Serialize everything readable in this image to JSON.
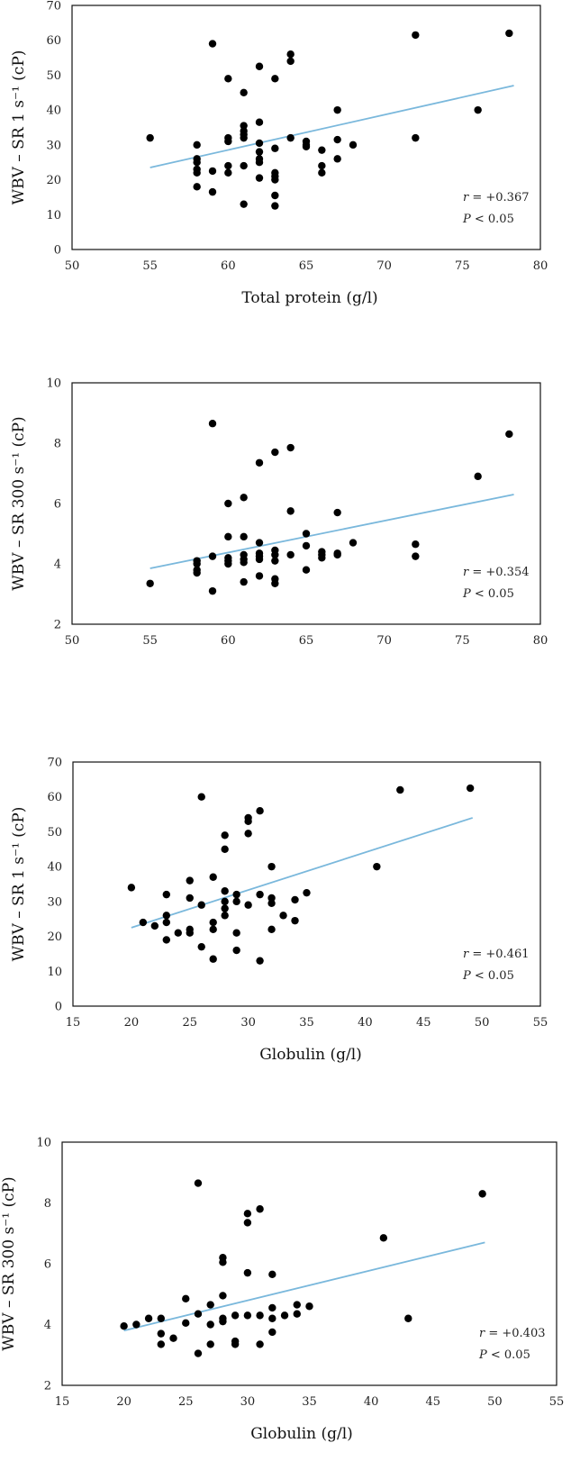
{
  "chart_data": [
    {
      "type": "scatter",
      "xlabel": "Total protein (g/l)",
      "ylabel": "WBV – SR 1 s⁻¹ (cP)",
      "xlim": [
        50,
        80
      ],
      "ylim": [
        0,
        70
      ],
      "xticks": [
        "50",
        "55",
        "60",
        "65",
        "70",
        "75",
        "80"
      ],
      "yticks": [
        "0",
        "10",
        "20",
        "30",
        "40",
        "50",
        "60",
        "70"
      ],
      "stat_r_label": "r",
      "stat_r_value": " = +0.367",
      "stat_p_label": "P",
      "stat_p_value": " < 0.05",
      "fit": [
        [
          55,
          23.5
        ],
        [
          78.3,
          47
        ]
      ],
      "points": [
        [
          55,
          32
        ],
        [
          58,
          30
        ],
        [
          58,
          26
        ],
        [
          58,
          25
        ],
        [
          58,
          23
        ],
        [
          58,
          22
        ],
        [
          58,
          18
        ],
        [
          59,
          59
        ],
        [
          59,
          22.5
        ],
        [
          59,
          16.5
        ],
        [
          60,
          49
        ],
        [
          60,
          32
        ],
        [
          60,
          31
        ],
        [
          60,
          24
        ],
        [
          60,
          22
        ],
        [
          61,
          45
        ],
        [
          61,
          35.5
        ],
        [
          61,
          34
        ],
        [
          61,
          33
        ],
        [
          61,
          32
        ],
        [
          61,
          24
        ],
        [
          61,
          13
        ],
        [
          62,
          52.5
        ],
        [
          62,
          36.5
        ],
        [
          62,
          30.5
        ],
        [
          62,
          28
        ],
        [
          62,
          26
        ],
        [
          62,
          25
        ],
        [
          62,
          20.5
        ],
        [
          63,
          49
        ],
        [
          63,
          29
        ],
        [
          63,
          22
        ],
        [
          63,
          21
        ],
        [
          63,
          20
        ],
        [
          63,
          15.5
        ],
        [
          63,
          12.5
        ],
        [
          64,
          56
        ],
        [
          64,
          54
        ],
        [
          64,
          32
        ],
        [
          65,
          31
        ],
        [
          65,
          30
        ],
        [
          65,
          29.5
        ],
        [
          66,
          28.5
        ],
        [
          66,
          24
        ],
        [
          66,
          22
        ],
        [
          67,
          40
        ],
        [
          67,
          31.5
        ],
        [
          67,
          26
        ],
        [
          68,
          30
        ],
        [
          72,
          61.5
        ],
        [
          72,
          32
        ],
        [
          76,
          40
        ],
        [
          78,
          62
        ]
      ]
    },
    {
      "type": "scatter",
      "xlabel": "Total protein (g/l)",
      "ylabel": "WBV – SR 300 s⁻¹ (cP)",
      "xlim": [
        50,
        80
      ],
      "ylim": [
        2,
        10
      ],
      "xticks": [
        "50",
        "55",
        "60",
        "65",
        "70",
        "75",
        "80"
      ],
      "yticks": [
        "2",
        "4",
        "6",
        "8",
        "10"
      ],
      "stat_r_label": "r",
      "stat_r_value": " = +0.354",
      "stat_p_label": "P",
      "stat_p_value": " < 0.05",
      "fit": [
        [
          55,
          3.85
        ],
        [
          78.3,
          6.3
        ]
      ],
      "points": [
        [
          55,
          3.35
        ],
        [
          58,
          4.1
        ],
        [
          58,
          4.0
        ],
        [
          58,
          3.8
        ],
        [
          58,
          3.7
        ],
        [
          59,
          8.65
        ],
        [
          59,
          4.25
        ],
        [
          59,
          3.1
        ],
        [
          60,
          6.0
        ],
        [
          60,
          4.9
        ],
        [
          60,
          4.2
        ],
        [
          60,
          4.1
        ],
        [
          60,
          4.0
        ],
        [
          61,
          6.2
        ],
        [
          61,
          4.9
        ],
        [
          61,
          4.3
        ],
        [
          61,
          4.15
        ],
        [
          61,
          4.05
        ],
        [
          61,
          3.4
        ],
        [
          62,
          7.35
        ],
        [
          62,
          4.7
        ],
        [
          62,
          4.35
        ],
        [
          62,
          4.25
        ],
        [
          62,
          4.15
        ],
        [
          62,
          3.6
        ],
        [
          63,
          7.7
        ],
        [
          63,
          4.45
        ],
        [
          63,
          4.3
        ],
        [
          63,
          4.1
        ],
        [
          63,
          3.5
        ],
        [
          63,
          3.35
        ],
        [
          64,
          7.85
        ],
        [
          64,
          5.75
        ],
        [
          64,
          4.3
        ],
        [
          65,
          5.0
        ],
        [
          65,
          4.6
        ],
        [
          65,
          3.8
        ],
        [
          66,
          4.4
        ],
        [
          66,
          4.3
        ],
        [
          66,
          4.2
        ],
        [
          67,
          5.7
        ],
        [
          67,
          4.35
        ],
        [
          67,
          4.3
        ],
        [
          68,
          4.7
        ],
        [
          72,
          4.65
        ],
        [
          72,
          4.25
        ],
        [
          76,
          6.9
        ],
        [
          78,
          8.3
        ]
      ]
    },
    {
      "type": "scatter",
      "xlabel": "Globulin (g/l)",
      "ylabel": "WBV – SR 1 s⁻¹ (cP)",
      "xlim": [
        15,
        55
      ],
      "ylim": [
        0,
        70
      ],
      "xticks": [
        "15",
        "20",
        "25",
        "30",
        "35",
        "40",
        "45",
        "50",
        "55"
      ],
      "yticks": [
        "0",
        "10",
        "20",
        "30",
        "40",
        "50",
        "60",
        "70"
      ],
      "stat_r_label": "r",
      "stat_r_value": " = +0.461",
      "stat_p_label": "P",
      "stat_p_value": " < 0.05",
      "fit": [
        [
          20,
          22.5
        ],
        [
          49.2,
          54
        ]
      ],
      "points": [
        [
          20,
          34
        ],
        [
          21,
          24
        ],
        [
          22,
          23
        ],
        [
          23,
          32
        ],
        [
          23,
          26
        ],
        [
          23,
          24
        ],
        [
          23,
          19
        ],
        [
          24,
          21
        ],
        [
          25,
          36
        ],
        [
          25,
          31
        ],
        [
          25,
          22
        ],
        [
          25,
          21
        ],
        [
          26,
          60
        ],
        [
          26,
          29
        ],
        [
          26,
          17
        ],
        [
          27,
          37
        ],
        [
          27,
          24
        ],
        [
          27,
          22
        ],
        [
          27,
          13.5
        ],
        [
          28,
          49
        ],
        [
          28,
          45
        ],
        [
          28,
          33
        ],
        [
          28,
          30
        ],
        [
          28,
          28
        ],
        [
          28,
          26
        ],
        [
          29,
          32
        ],
        [
          29,
          30
        ],
        [
          29,
          21
        ],
        [
          29,
          16
        ],
        [
          30,
          54
        ],
        [
          30,
          53
        ],
        [
          30,
          49.5
        ],
        [
          30,
          29
        ],
        [
          31,
          56
        ],
        [
          31,
          32
        ],
        [
          31,
          13
        ],
        [
          32,
          40
        ],
        [
          32,
          31
        ],
        [
          32,
          29.5
        ],
        [
          32,
          22
        ],
        [
          33,
          26
        ],
        [
          34,
          30.5
        ],
        [
          34,
          24.5
        ],
        [
          35,
          32.5
        ],
        [
          41,
          40
        ],
        [
          43,
          62
        ],
        [
          49,
          62.5
        ]
      ]
    },
    {
      "type": "scatter",
      "xlabel": "Globulin (g/l)",
      "ylabel": "WBV – SR 300 s⁻¹ (cP)",
      "xlim": [
        15,
        55
      ],
      "ylim": [
        2,
        10
      ],
      "xticks": [
        "15",
        "20",
        "25",
        "30",
        "35",
        "40",
        "45",
        "50",
        "55"
      ],
      "yticks": [
        "2",
        "4",
        "6",
        "8",
        "10"
      ],
      "stat_r_label": "r",
      "stat_r_value": " = +0.403",
      "stat_p_label": "P",
      "stat_p_value": " < 0.05",
      "fit": [
        [
          20,
          3.8
        ],
        [
          49.2,
          6.7
        ]
      ],
      "points": [
        [
          20,
          3.95
        ],
        [
          21,
          4.0
        ],
        [
          22,
          4.2
        ],
        [
          23,
          4.2
        ],
        [
          23,
          3.7
        ],
        [
          23,
          3.35
        ],
        [
          24,
          3.55
        ],
        [
          25,
          4.85
        ],
        [
          25,
          4.05
        ],
        [
          26,
          8.65
        ],
        [
          26,
          4.35
        ],
        [
          26,
          3.05
        ],
        [
          27,
          4.65
        ],
        [
          27,
          4.0
        ],
        [
          27,
          3.35
        ],
        [
          28,
          6.2
        ],
        [
          28,
          6.05
        ],
        [
          28,
          4.95
        ],
        [
          28,
          4.2
        ],
        [
          28,
          4.1
        ],
        [
          29,
          4.3
        ],
        [
          29,
          3.45
        ],
        [
          29,
          3.35
        ],
        [
          30,
          7.65
        ],
        [
          30,
          7.35
        ],
        [
          30,
          5.7
        ],
        [
          30,
          4.3
        ],
        [
          31,
          7.8
        ],
        [
          31,
          4.3
        ],
        [
          31,
          3.35
        ],
        [
          32,
          5.65
        ],
        [
          32,
          4.55
        ],
        [
          32,
          4.2
        ],
        [
          32,
          3.75
        ],
        [
          33,
          4.3
        ],
        [
          34,
          4.65
        ],
        [
          34,
          4.35
        ],
        [
          35,
          4.6
        ],
        [
          41,
          6.85
        ],
        [
          43,
          4.2
        ],
        [
          49,
          8.3
        ]
      ]
    }
  ]
}
